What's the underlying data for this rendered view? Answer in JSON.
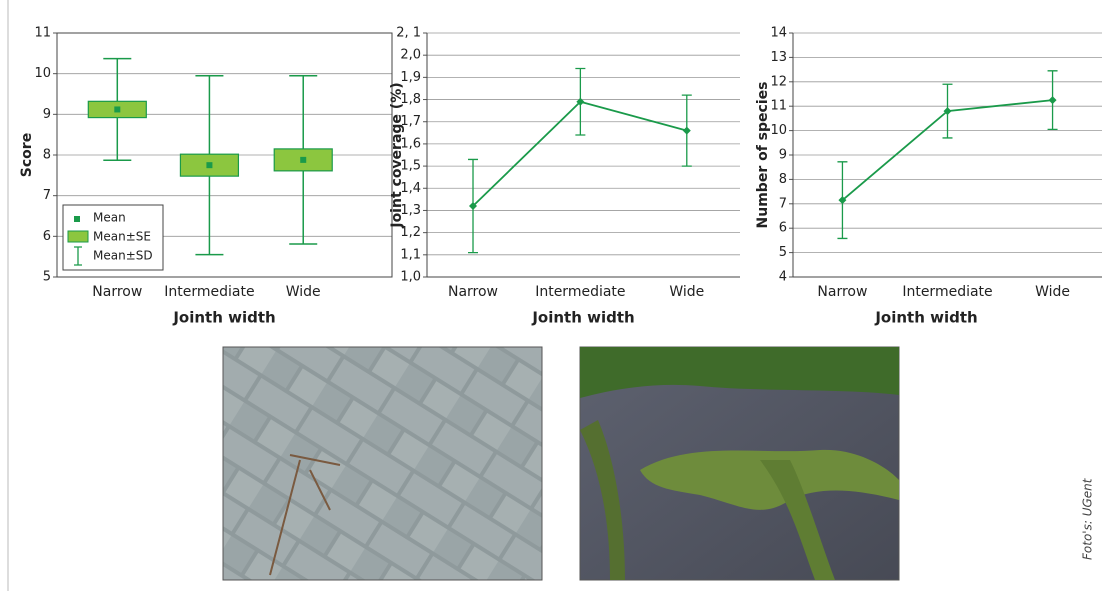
{
  "chart_data": [
    {
      "type": "box",
      "ylabel": "Score",
      "xlabel": "Jointh width",
      "categories": [
        "Narrow",
        "Intermediate",
        "Wide"
      ],
      "ylim": [
        5,
        11
      ],
      "yticks": [
        5,
        6,
        7,
        8,
        9,
        10,
        11
      ],
      "grid": true,
      "color": "#1a9a4a",
      "box_color": "#8cc63f",
      "series": [
        {
          "name": "Mean",
          "values": [
            9.12,
            7.75,
            7.88
          ]
        },
        {
          "name": "Mean±SE",
          "values": [
            0.2,
            0.27,
            0.27
          ]
        },
        {
          "name": "Mean±SD",
          "values": [
            1.25,
            2.2,
            2.07
          ]
        }
      ]
    },
    {
      "type": "line",
      "ylabel": "Joint coverage (%)",
      "xlabel": "Jointh width",
      "categories": [
        "Narrow",
        "Intermediate",
        "Wide"
      ],
      "ylim": [
        1.0,
        2.1
      ],
      "yticks": [
        {
          "value": 1.0,
          "label": "1,0"
        },
        {
          "value": 1.1,
          "label": "1,1"
        },
        {
          "value": 1.2,
          "label": "1,2"
        },
        {
          "value": 1.3,
          "label": "1,3"
        },
        {
          "value": 1.4,
          "label": "1,4"
        },
        {
          "value": 1.5,
          "label": "1,5"
        },
        {
          "value": 1.6,
          "label": "1,6"
        },
        {
          "value": 1.7,
          "label": "1,7"
        },
        {
          "value": 1.8,
          "label": "1,8"
        },
        {
          "value": 1.9,
          "label": "1,9"
        },
        {
          "value": 2.0,
          "label": "2,0"
        },
        {
          "value": 2.1,
          "label": "2, 1"
        }
      ],
      "grid": true,
      "color": "#1a9a4a",
      "values": [
        1.32,
        1.79,
        1.66
      ],
      "errors": [
        0.21,
        0.15,
        0.16
      ]
    },
    {
      "type": "line",
      "ylabel": "Number of species",
      "xlabel": "Jointh width",
      "categories": [
        "Narrow",
        "Intermediate",
        "Wide"
      ],
      "ylim": [
        4,
        14
      ],
      "yticks": [
        4,
        5,
        6,
        7,
        8,
        9,
        10,
        11,
        12,
        13,
        14
      ],
      "grid": true,
      "color": "#1a9a4a",
      "values": [
        7.15,
        10.8,
        11.25
      ],
      "errors": [
        1.57,
        1.1,
        1.2
      ]
    }
  ],
  "credit": "Foto's: UGent"
}
